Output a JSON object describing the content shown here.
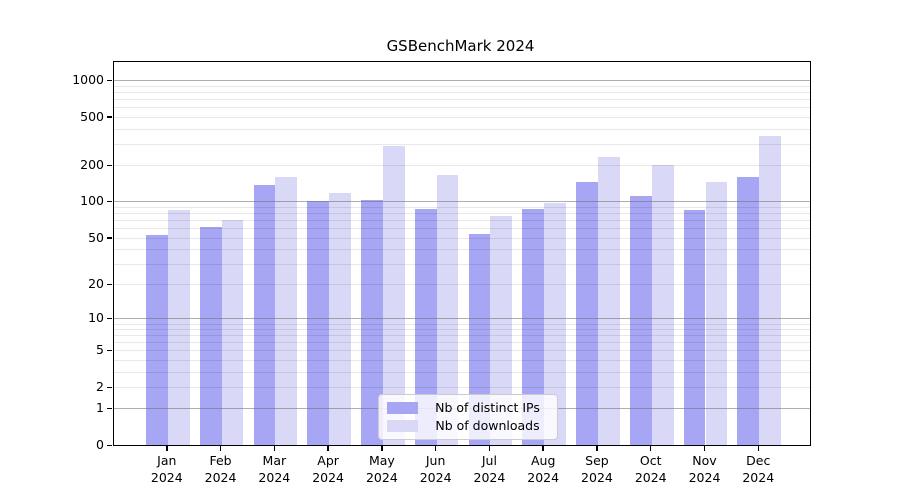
{
  "title": "GSBenchMark 2024",
  "chart_data": {
    "type": "bar",
    "title": "GSBenchMark 2024",
    "categories": [
      "Jan",
      "Feb",
      "Mar",
      "Apr",
      "May",
      "Jun",
      "Jul",
      "Aug",
      "Sep",
      "Oct",
      "Nov",
      "Dec"
    ],
    "category_year": "2024",
    "series": [
      {
        "name": "Nb of distinct IPs",
        "color": "#a6a6f5",
        "values": [
          53,
          61,
          138,
          100,
          102,
          86,
          54,
          87,
          144,
          110,
          85,
          160
        ]
      },
      {
        "name": "Nb of downloads",
        "color": "#d9d9f7",
        "values": [
          85,
          70,
          160,
          118,
          290,
          165,
          76,
          97,
          235,
          200,
          145,
          350
        ]
      }
    ],
    "yscale": "log1p",
    "yticks": [
      0,
      1,
      2,
      5,
      10,
      20,
      50,
      100,
      200,
      500,
      1000
    ],
    "ylim": [
      0,
      1400
    ],
    "xlabel": "",
    "ylabel": "",
    "grid": true,
    "grid_above_bars": true,
    "legend_position": "lower center"
  },
  "colors": {
    "series_dark": "#a6a6f5",
    "series_light": "#d9d9f7",
    "major_grid": "#b0b0b0",
    "minor_grid": "#e8e8e8",
    "spine": "#000000",
    "background": "#ffffff"
  }
}
